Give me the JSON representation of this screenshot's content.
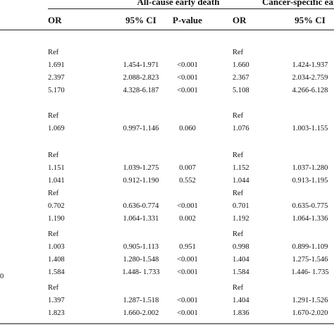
{
  "header": {
    "group1_title": "All-cause early death",
    "group2_title": "Cancer-specific early",
    "columns": {
      "or1": "OR",
      "ci1": "95% CI",
      "p1": "P-value",
      "or2": "OR",
      "ci2": "95% CI"
    }
  },
  "edge_mark": "0",
  "groups": [
    {
      "rows": [
        {
          "or1": "Ref",
          "ci1": "",
          "p1": "",
          "or2": "Ref",
          "ci2": ""
        },
        {
          "or1": "1.691",
          "ci1": "1.454-1.971",
          "p1": "<0.001",
          "or2": "1.660",
          "ci2": "1.424-1.937"
        },
        {
          "or1": "2.397",
          "ci1": "2.088-2.823",
          "p1": "<0.001",
          "or2": "2.367",
          "ci2": "2.034-2.759"
        },
        {
          "or1": "5.170",
          "ci1": "4.328-6.187",
          "p1": "<0.001",
          "or2": "5.108",
          "ci2": "4.266-6.128"
        }
      ]
    },
    {
      "rows": [
        {
          "or1": "Ref",
          "ci1": "",
          "p1": "",
          "or2": "Ref",
          "ci2": ""
        },
        {
          "or1": "1.069",
          "ci1": "0.997-1.146",
          "p1": "0.060",
          "or2": "1.076",
          "ci2": "1.003-1.155"
        }
      ]
    },
    {
      "rows": [
        {
          "or1": "Ref",
          "ci1": "",
          "p1": "",
          "or2": "Ref",
          "ci2": ""
        },
        {
          "or1": "1.151",
          "ci1": "1.039-1.275",
          "p1": "0.007",
          "or2": "1.152",
          "ci2": "1.037-1.280"
        },
        {
          "or1": "1.041",
          "ci1": "0.912-1.190",
          "p1": "0.552",
          "or2": "1.044",
          "ci2": "0.913-1.195"
        }
      ]
    },
    {
      "rows": [
        {
          "or1": "Ref",
          "ci1": "",
          "p1": "",
          "or2": "Ref",
          "ci2": ""
        },
        {
          "or1": "0.702",
          "ci1": "0.636-0.774",
          "p1": "<0.001",
          "or2": "0.701",
          "ci2": "0.635-0.775"
        },
        {
          "or1": "1.190",
          "ci1": "1.064-1.331",
          "p1": "0.002",
          "or2": "1.192",
          "ci2": "1.064-1.336"
        }
      ]
    },
    {
      "rows": [
        {
          "or1": "Ref",
          "ci1": "",
          "p1": "",
          "or2": "Ref",
          "ci2": ""
        },
        {
          "or1": "1.003",
          "ci1": "0.905-1.113",
          "p1": "0.951",
          "or2": "0.998",
          "ci2": "0.899-1.109"
        },
        {
          "or1": "1.408",
          "ci1": "1.280-1.548",
          "p1": "<0.001",
          "or2": "1.404",
          "ci2": "1.275-1.546"
        },
        {
          "or1": "1.584",
          "ci1": "1.448- 1.733",
          "p1": "<0.001",
          "or2": "1.584",
          "ci2": "1.446- 1.735"
        }
      ]
    },
    {
      "rows": [
        {
          "or1": "Ref",
          "ci1": "",
          "p1": "",
          "or2": "Ref",
          "ci2": ""
        },
        {
          "or1": "1.397",
          "ci1": "1.287-1.518",
          "p1": "<0.001",
          "or2": "1.404",
          "ci2": "1.291-1.526"
        },
        {
          "or1": "1.823",
          "ci1": "1.660-2.002",
          "p1": "<0.001",
          "or2": "1.836",
          "ci2": "1.670-2.020"
        }
      ]
    }
  ]
}
